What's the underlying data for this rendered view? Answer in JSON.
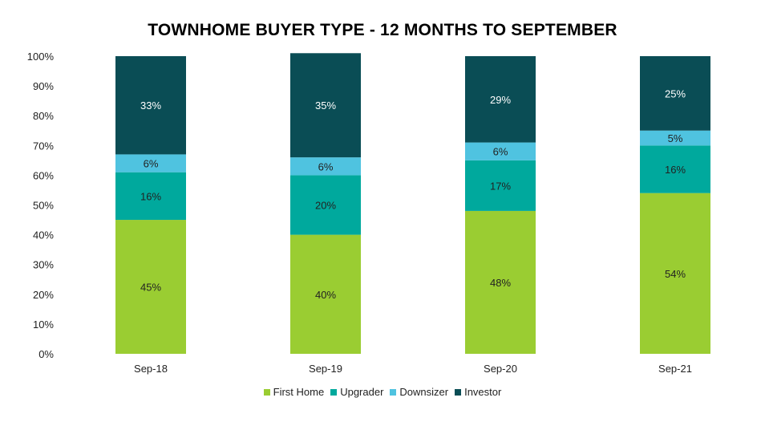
{
  "chart_data": {
    "type": "bar",
    "stacked": true,
    "title": "TOWNHOME BUYER TYPE - 12 MONTHS TO SEPTEMBER",
    "xlabel": "",
    "ylabel": "",
    "categories": [
      "Sep-18",
      "Sep-19",
      "Sep-20",
      "Sep-21"
    ],
    "ylim": [
      0,
      100
    ],
    "yticks": [
      "0%",
      "10%",
      "20%",
      "30%",
      "40%",
      "50%",
      "60%",
      "70%",
      "80%",
      "90%",
      "100%"
    ],
    "series": [
      {
        "name": "First Home",
        "color": "#9ACD32",
        "values": [
          45,
          40,
          48,
          54
        ],
        "labels": [
          "45%",
          "40%",
          "48%",
          "54%"
        ]
      },
      {
        "name": "Upgrader",
        "color": "#00A99D",
        "values": [
          16,
          20,
          17,
          16
        ],
        "labels": [
          "16%",
          "20%",
          "17%",
          "16%"
        ]
      },
      {
        "name": "Downsizer",
        "color": "#4FC3E0",
        "values": [
          6,
          6,
          6,
          5
        ],
        "labels": [
          "6%",
          "6%",
          "6%",
          "5%"
        ]
      },
      {
        "name": "Investor",
        "color": "#0A4D55",
        "values": [
          33,
          35,
          29,
          25
        ],
        "labels": [
          "33%",
          "35%",
          "29%",
          "25%"
        ]
      }
    ],
    "grid": false,
    "legend_position": "bottom"
  }
}
